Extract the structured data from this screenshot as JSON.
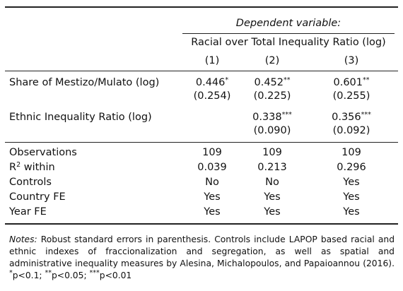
{
  "header": {
    "dependent_variable": "Dependent variable:",
    "dependent_name": "Racial over Total Inequality Ratio (log)",
    "columns": [
      "(1)",
      "(2)",
      "(3)"
    ]
  },
  "rows": [
    {
      "label": "Share of Mestizo/Mulato (log)",
      "coef": [
        "0.446",
        "0.452",
        "0.601"
      ],
      "stars": [
        "*",
        "**",
        "**"
      ],
      "se": [
        "(0.254)",
        "(0.225)",
        "(0.255)"
      ]
    },
    {
      "label": "Ethnic Inequality Ratio (log)",
      "coef": [
        "",
        "0.338",
        "0.356"
      ],
      "stars": [
        "",
        "***",
        "***"
      ],
      "se": [
        "",
        "(0.090)",
        "(0.092)"
      ]
    }
  ],
  "stats": [
    {
      "label": "Observations",
      "values": [
        "109",
        "109",
        "109"
      ]
    },
    {
      "label_base": "R",
      "label_sup": "2",
      "label_rest": " within",
      "values": [
        "0.039",
        "0.213",
        "0.296"
      ]
    },
    {
      "label": "Controls",
      "values": [
        "No",
        "No",
        "Yes"
      ]
    },
    {
      "label": "Country FE",
      "values": [
        "Yes",
        "Yes",
        "Yes"
      ]
    },
    {
      "label": "Year FE",
      "values": [
        "Yes",
        "Yes",
        "Yes"
      ]
    }
  ],
  "notes": {
    "prefix": "Notes:",
    "text": " Robust standard errors in parenthesis. Controls include LAPOP based racial and ethnic indexes of fraccionalization and segregation, as well as spatial and administrative inequality measures by Alesina, Michalopoulos, and Papaioannou (2016). ",
    "sig1_star": "*",
    "sig1": "p<0.1; ",
    "sig2_star": "**",
    "sig2": "p<0.05; ",
    "sig3_star": "***",
    "sig3": "p<0.01"
  }
}
